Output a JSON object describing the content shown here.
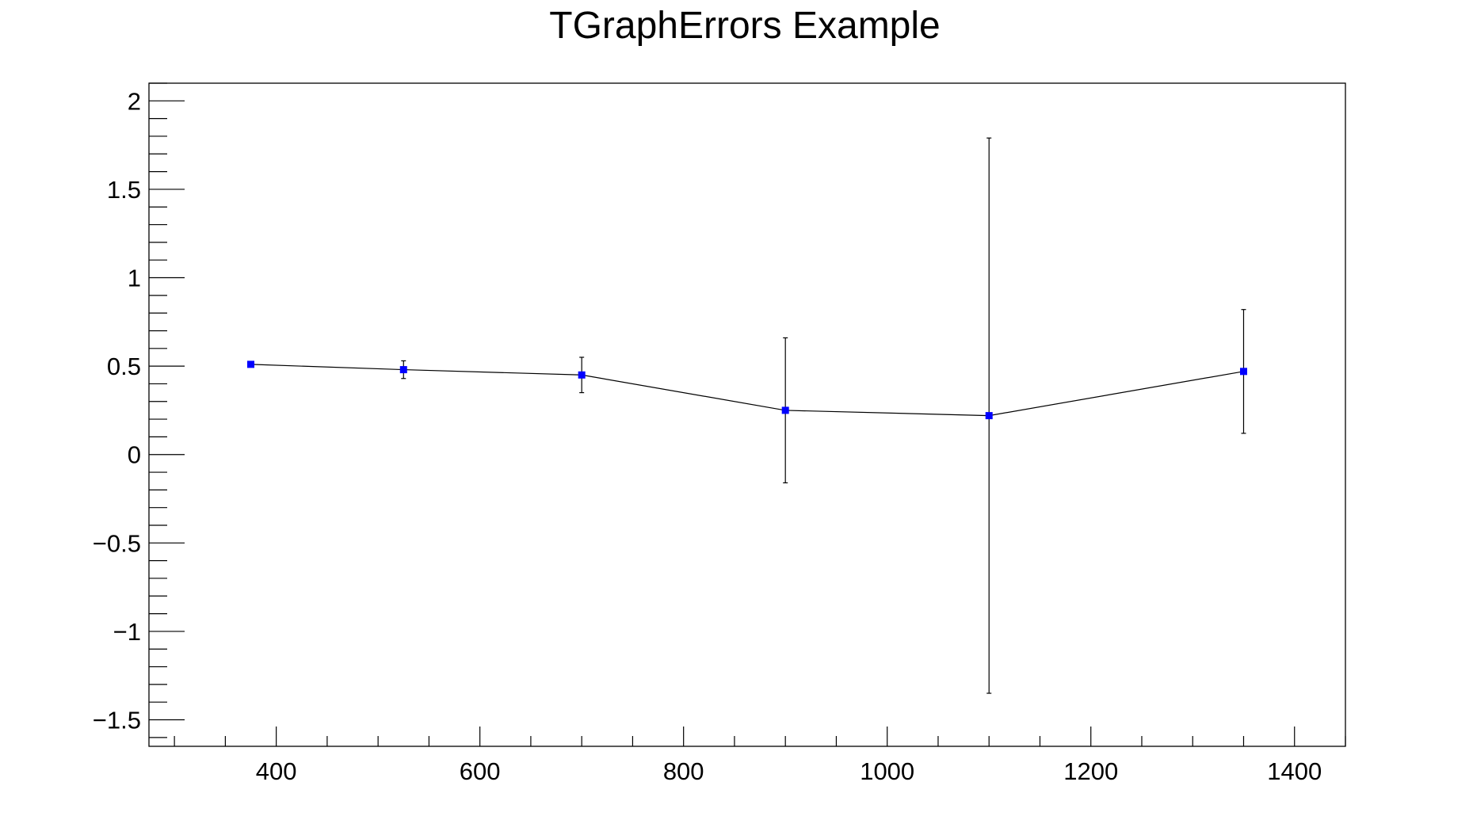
{
  "chart_data": {
    "type": "scatter",
    "title": "TGraphErrors Example",
    "xlabel": "",
    "ylabel": "",
    "xlim": [
      275,
      1450
    ],
    "ylim": [
      -1.65,
      2.1
    ],
    "x_ticks": [
      400,
      600,
      800,
      1000,
      1200,
      1400
    ],
    "x_tick_labels": [
      "400",
      "600",
      "800",
      "1000",
      "1200",
      "1400"
    ],
    "y_ticks": [
      -1.5,
      -1,
      -0.5,
      0,
      0.5,
      1,
      1.5,
      2
    ],
    "y_tick_labels": [
      "−1.5",
      "−1",
      "−0.5",
      "0",
      "0.5",
      "1",
      "1.5",
      "2"
    ],
    "grid": false,
    "series": [
      {
        "x": [
          375,
          525,
          700,
          900,
          1100,
          1350
        ],
        "y": [
          0.51,
          0.48,
          0.45,
          0.25,
          0.22,
          0.47
        ],
        "y_err": [
          0.01,
          0.05,
          0.1,
          0.41,
          1.57,
          0.35
        ],
        "marker_color": "#0000ff",
        "line_color": "#000000"
      }
    ]
  }
}
